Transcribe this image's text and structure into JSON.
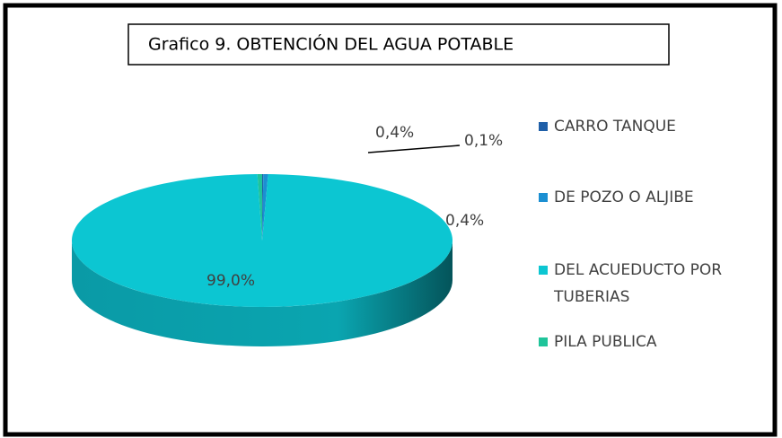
{
  "chart_data": {
    "type": "pie",
    "title": "Grafico 9. OBTENCIÓN DEL AGUA POTABLE",
    "categories": [
      "CARRO TANQUE",
      "DE POZO O ALJIBE",
      "DEL ACUEDUCTO POR TUBERIAS",
      "PILA PUBLICA"
    ],
    "values": [
      0.1,
      0.4,
      99.0,
      0.4
    ],
    "value_labels": [
      "0,1%",
      "0,4%",
      "99,0%",
      "0,4%"
    ],
    "colors": [
      "#1f5fa8",
      "#1b8fd2",
      "#0cc6d2",
      "#1fc49a"
    ],
    "legend": "right"
  }
}
